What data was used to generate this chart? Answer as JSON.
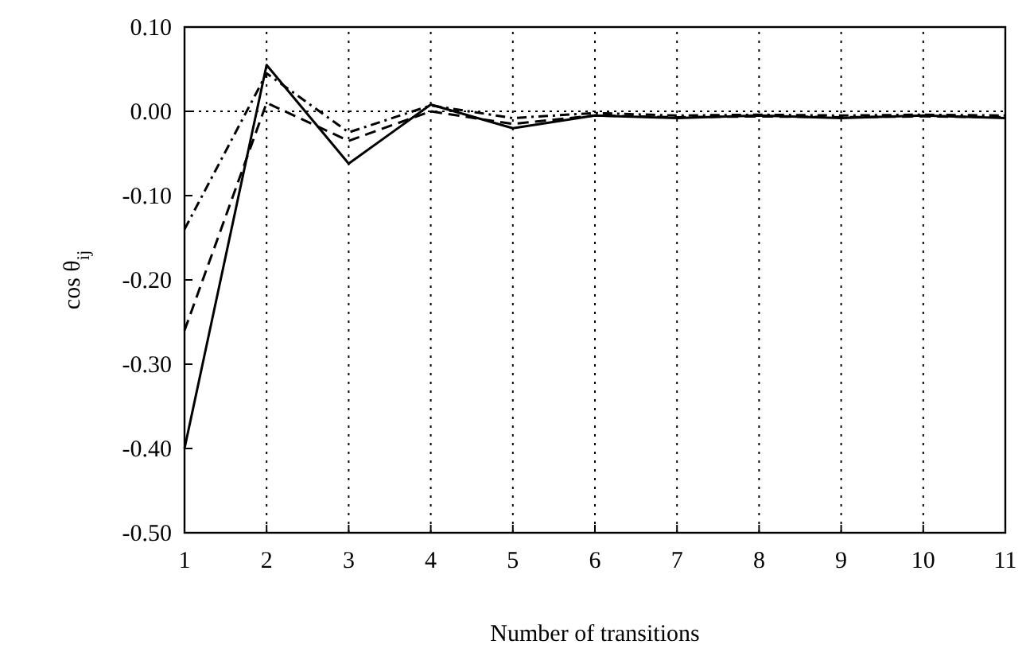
{
  "chart_data": {
    "type": "line",
    "xlabel": "Number of transitions",
    "ylabel": "cos θ$_{ij}$",
    "x": [
      1,
      2,
      3,
      4,
      5,
      6,
      7,
      8,
      9,
      10,
      11
    ],
    "xlim": [
      1,
      11
    ],
    "xticks": [
      1,
      2,
      3,
      4,
      5,
      6,
      7,
      8,
      9,
      10,
      11
    ],
    "ylim": [
      -0.5,
      0.1
    ],
    "yticks": [
      {
        "value": -0.5,
        "label": "-0.50"
      },
      {
        "value": -0.4,
        "label": "-0.40"
      },
      {
        "value": -0.3,
        "label": "-0.30"
      },
      {
        "value": -0.2,
        "label": "-0.20"
      },
      {
        "value": -0.1,
        "label": "-0.10"
      },
      {
        "value": 0,
        "label": "0.00"
      },
      {
        "value": 0.1,
        "label": "0.10"
      }
    ],
    "grid": "x",
    "marker": "none",
    "ref_lines": [
      {
        "axis": "y",
        "value": 0,
        "line_style": "dotted"
      }
    ],
    "series": [
      {
        "color": "#000000",
        "line_style": "solid",
        "values": [
          -0.4,
          0.055,
          -0.062,
          0.008,
          -0.02,
          -0.005,
          -0.008,
          -0.005,
          -0.008,
          -0.005,
          -0.008
        ]
      },
      {
        "color": "#000000",
        "line_style": "dashed",
        "values": [
          -0.26,
          0.01,
          -0.035,
          0.0,
          -0.015,
          -0.005,
          -0.007,
          -0.006,
          -0.007,
          -0.006,
          -0.007
        ]
      },
      {
        "color": "#000000",
        "line_style": "dashdot",
        "values": [
          -0.14,
          0.045,
          -0.025,
          0.007,
          -0.008,
          -0.002,
          -0.005,
          -0.004,
          -0.005,
          -0.004,
          -0.005
        ]
      }
    ]
  }
}
